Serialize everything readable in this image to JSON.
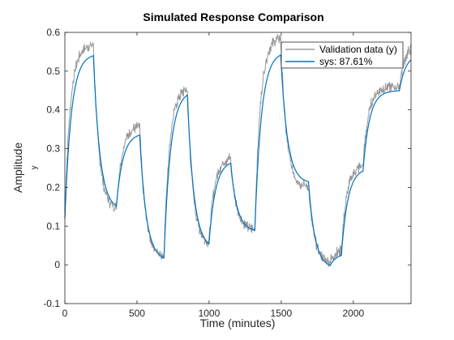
{
  "chart_data": {
    "type": "line",
    "title": "Simulated Response Comparison",
    "xlabel": "Time (minutes)",
    "ylabel": "Amplitude",
    "ylabel_sub": "y",
    "xlim": [
      0,
      2400
    ],
    "ylim": [
      -0.1,
      0.6
    ],
    "xticks": [
      0,
      500,
      1000,
      1500,
      2000
    ],
    "yticks": [
      -0.1,
      0,
      0.1,
      0.2,
      0.3,
      0.4,
      0.5,
      0.6
    ],
    "grid": false,
    "legend_position": "top-right",
    "inputs": {
      "segment_starts": [
        0,
        200,
        360,
        520,
        690,
        850,
        1000,
        1150,
        1320,
        1500,
        1690,
        1840,
        1920,
        2070,
        2320
      ],
      "meas_levels": [
        0.57,
        0.14,
        0.36,
        0.02,
        0.46,
        0.05,
        0.28,
        0.09,
        0.59,
        0.2,
        0.005,
        0.04,
        0.26,
        0.46,
        0.57
      ],
      "sim_levels": [
        0.545,
        0.14,
        0.34,
        0.01,
        0.45,
        0.04,
        0.27,
        0.085,
        0.55,
        0.21,
        -0.01,
        0.03,
        0.25,
        0.45,
        0.545
      ]
    },
    "series": [
      {
        "name": "Validation data (y)",
        "color": "#999999"
      },
      {
        "name": "sys: 87.61%",
        "color": "#0072BD"
      }
    ]
  }
}
